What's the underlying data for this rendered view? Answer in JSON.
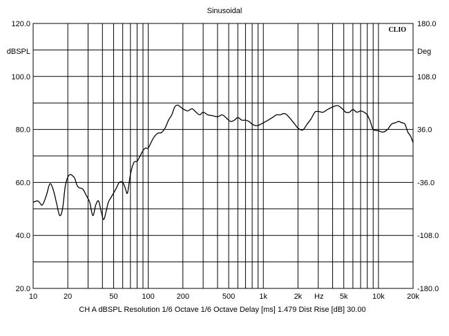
{
  "chart_data": {
    "type": "line",
    "title": "Sinusoidal",
    "brand": "CLIO",
    "x_scale": "log",
    "xlim": [
      10,
      20000
    ],
    "x_ticks": [
      10,
      20,
      50,
      100,
      200,
      500,
      1000,
      2000,
      5000,
      10000,
      20000
    ],
    "x_tick_labels": [
      "10",
      "20",
      "50",
      "100",
      "200",
      "500",
      "1k",
      "2k",
      "5k",
      "10k",
      "20k"
    ],
    "x_unit_label": "Hz",
    "ylim_left": [
      20,
      120
    ],
    "y_ticks_left": [
      20,
      40,
      60,
      80,
      100,
      120
    ],
    "y_tick_labels_left": [
      "20.0",
      "40.0",
      "60.0",
      "80.0",
      "100.0",
      "120.0"
    ],
    "ylabel_left": "dBSPL",
    "ylim_right": [
      -180,
      180
    ],
    "y_tick_labels_right": [
      "-180.0",
      "-108.0",
      "-36.0",
      "36.0",
      "108.0",
      "180.0"
    ],
    "ylabel_right": "Deg",
    "grid": true,
    "footer": "CH A   dBSPL   Resolution 1/6 Octave    1/6 Octave    Delay [ms] 1.479    Dist Rise [dB] 30.00",
    "series": [
      {
        "color": "#000000",
        "x": [
          10,
          11,
          12,
          13,
          14,
          15,
          16,
          17,
          18,
          19,
          20,
          21,
          22,
          23,
          24,
          25,
          27,
          29,
          31,
          33,
          35,
          37,
          39,
          41,
          43,
          45,
          47,
          50,
          53,
          56,
          60,
          63,
          66,
          70,
          75,
          80,
          85,
          90,
          95,
          100,
          110,
          120,
          130,
          140,
          150,
          160,
          170,
          180,
          190,
          200,
          220,
          240,
          260,
          280,
          300,
          330,
          360,
          400,
          440,
          480,
          520,
          560,
          600,
          650,
          700,
          750,
          800,
          850,
          900,
          1000,
          1100,
          1200,
          1300,
          1400,
          1500,
          1600,
          1800,
          2000,
          2200,
          2400,
          2600,
          2800,
          3000,
          3300,
          3600,
          4000,
          4400,
          4800,
          5200,
          5600,
          6000,
          6500,
          7000,
          7500,
          8000,
          8500,
          9000,
          10000,
          11000,
          12000,
          13000,
          14000,
          15000,
          16000,
          17000,
          18000,
          19000,
          20000
        ],
        "y": [
          52.5,
          53,
          51.5,
          55,
          59.5,
          57,
          52,
          47.5,
          50,
          58.5,
          62,
          63,
          62.5,
          61.5,
          59,
          58,
          57.5,
          55,
          52.5,
          47.5,
          51.5,
          53,
          49,
          46,
          49,
          52.5,
          54,
          56,
          58,
          60,
          60,
          58,
          56,
          63,
          67.5,
          68,
          70,
          72,
          73,
          73,
          76.5,
          78.5,
          78.8,
          80.5,
          83.5,
          85.5,
          88.5,
          89.2,
          88.5,
          87.8,
          87,
          87.8,
          86.5,
          85.5,
          86.5,
          85.5,
          85.2,
          84.8,
          85.5,
          84.2,
          83,
          83.5,
          84.5,
          83.5,
          83.5,
          83,
          82,
          81.5,
          81.5,
          82.5,
          83.5,
          84.5,
          85.5,
          85.5,
          86,
          85.5,
          83,
          80.5,
          79.8,
          82,
          84,
          86.5,
          86.8,
          86.5,
          87.5,
          88.5,
          89,
          88,
          86.5,
          86.5,
          87.5,
          86.5,
          87,
          86.5,
          85.5,
          83,
          80,
          79.5,
          79,
          80,
          82,
          82.5,
          83,
          82.5,
          82,
          79,
          77.5,
          75
        ]
      }
    ]
  }
}
